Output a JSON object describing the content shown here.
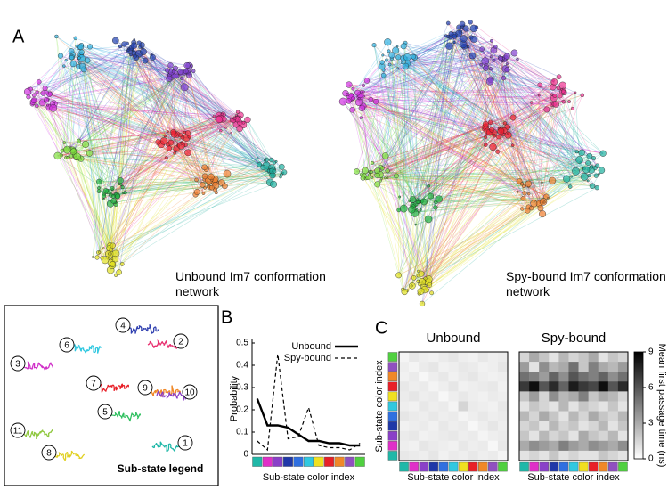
{
  "panel_labels": {
    "a": "A",
    "b": "B",
    "c": "C"
  },
  "network_captions": [
    "Unbound Im7 conformation network",
    "Spy-bound Im7 conformation network"
  ],
  "substate_legend": {
    "title": "Sub-state legend",
    "numbers": [
      "1",
      "2",
      "3",
      "4",
      "5",
      "6",
      "7",
      "8",
      "9",
      "10",
      "11"
    ]
  },
  "chart_data": [
    {
      "type": "line",
      "ylabel": "Probability",
      "xlabel": "Sub-state color index",
      "categories": [
        null,
        null,
        null,
        null,
        null,
        null,
        null,
        null,
        null,
        null,
        null
      ],
      "category_colors": [
        "#20b8a8",
        "#e030c8",
        "#8a40c8",
        "#2038a8",
        "#3070e0",
        "#30c8e0",
        "#f0e020",
        "#e82028",
        "#f08828",
        "#9050c0",
        "#50d040"
      ],
      "series": [
        {
          "name": "Unbound",
          "color": "#000000",
          "dash": "solid",
          "values": [
            0.25,
            0.13,
            0.13,
            0.12,
            0.09,
            0.06,
            0.06,
            0.05,
            0.05,
            0.04,
            0.04
          ]
        },
        {
          "name": "Spy-bound",
          "color": "#000000",
          "dash": "dashed",
          "values": [
            0.06,
            0.02,
            0.45,
            0.07,
            0.08,
            0.21,
            0.04,
            0.03,
            0.03,
            0.02,
            0.05
          ]
        }
      ],
      "ylim": [
        0,
        0.5
      ],
      "yticks": [
        0,
        0.1,
        0.2,
        0.3,
        0.4,
        0.5
      ],
      "legend": "upper right"
    },
    {
      "type": "heatmap",
      "title": "Unbound",
      "ylabel": "Sub-state color index",
      "xlabel": "Sub-state color index",
      "zlim": [
        0,
        9
      ],
      "values": [
        [
          0.4,
          0.8,
          0.6,
          0.5,
          0.7,
          0.9,
          0.6,
          0.5,
          0.8,
          0.6,
          0.7
        ],
        [
          0.6,
          0.4,
          0.7,
          0.9,
          0.5,
          0.6,
          0.8,
          0.7,
          0.5,
          0.6,
          0.9
        ],
        [
          0.5,
          0.7,
          0.3,
          0.6,
          0.8,
          0.5,
          0.7,
          0.9,
          0.6,
          0.5,
          0.6
        ],
        [
          0.8,
          0.6,
          0.7,
          0.4,
          0.6,
          0.9,
          0.5,
          0.6,
          0.7,
          0.8,
          0.5
        ],
        [
          0.7,
          0.9,
          0.6,
          0.7,
          0.3,
          0.6,
          0.8,
          0.6,
          0.5,
          0.7,
          0.6
        ],
        [
          0.6,
          0.5,
          0.8,
          0.6,
          0.7,
          0.4,
          1.5,
          0.7,
          0.6,
          0.5,
          0.8
        ],
        [
          0.9,
          0.7,
          0.6,
          0.8,
          0.6,
          0.7,
          0.4,
          0.6,
          0.8,
          0.6,
          0.7
        ],
        [
          0.5,
          0.6,
          0.7,
          0.5,
          0.8,
          0.6,
          0.7,
          0.3,
          0.6,
          0.9,
          0.6
        ],
        [
          0.7,
          0.8,
          0.5,
          0.6,
          0.7,
          0.8,
          0.6,
          0.7,
          0.4,
          0.6,
          0.7
        ],
        [
          0.6,
          0.5,
          0.9,
          0.7,
          0.6,
          0.5,
          0.8,
          0.6,
          0.7,
          0.3,
          0.8
        ],
        [
          0.8,
          0.7,
          0.6,
          0.9,
          0.5,
          0.7,
          0.6,
          0.8,
          0.6,
          0.7,
          0.4
        ]
      ]
    },
    {
      "type": "heatmap",
      "title": "Spy-bound",
      "xlabel": "Sub-state color index",
      "zlim": [
        0,
        9
      ],
      "zticks": [
        0,
        3,
        6,
        9
      ],
      "colorbar_label": "Mean first passage time (ns)",
      "values": [
        [
          1.5,
          3.0,
          2.0,
          1.0,
          2.5,
          1.5,
          2.0,
          3.0,
          1.0,
          2.0,
          1.5
        ],
        [
          3.5,
          1.0,
          4.0,
          2.5,
          3.0,
          5.0,
          2.0,
          4.5,
          3.0,
          2.5,
          3.5
        ],
        [
          5.0,
          4.5,
          3.5,
          5.5,
          4.0,
          6.0,
          5.0,
          4.5,
          5.5,
          4.0,
          5.0
        ],
        [
          7.0,
          8.5,
          6.0,
          7.5,
          5.5,
          8.0,
          7.0,
          6.5,
          8.5,
          6.0,
          7.5
        ],
        [
          2.0,
          3.5,
          1.5,
          4.0,
          2.5,
          3.0,
          4.5,
          2.0,
          3.0,
          2.5,
          1.5
        ],
        [
          1.0,
          2.0,
          1.5,
          1.0,
          2.5,
          1.0,
          2.0,
          1.5,
          1.0,
          2.0,
          1.0
        ],
        [
          2.5,
          1.5,
          3.0,
          2.0,
          1.0,
          2.5,
          1.5,
          3.0,
          2.0,
          1.5,
          2.5
        ],
        [
          1.5,
          2.0,
          1.0,
          2.5,
          1.5,
          2.0,
          1.0,
          1.5,
          2.5,
          1.0,
          2.0
        ],
        [
          2.0,
          1.0,
          2.5,
          1.5,
          2.0,
          1.0,
          3.0,
          2.0,
          1.5,
          2.5,
          1.0
        ],
        [
          3.0,
          4.0,
          3.5,
          3.0,
          4.5,
          3.5,
          3.0,
          4.0,
          3.5,
          3.0,
          4.0
        ],
        [
          1.0,
          1.5,
          1.0,
          2.0,
          1.0,
          1.5,
          1.0,
          1.0,
          2.0,
          1.5,
          1.0
        ]
      ]
    }
  ]
}
